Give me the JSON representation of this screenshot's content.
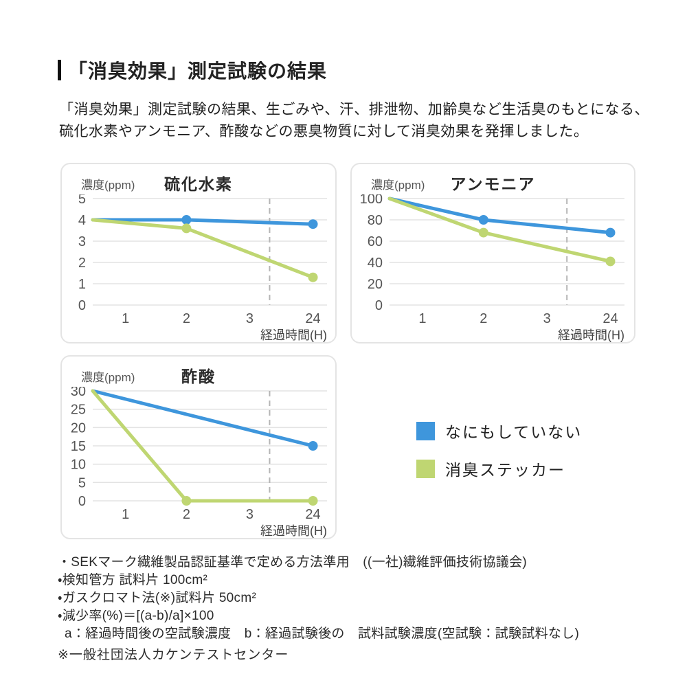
{
  "header": {
    "title": "「消臭効果」測定試験の結果"
  },
  "intro": {
    "line1": "「消臭効果」測定試験の結果、生ごみや、汗、排泄物、加齢臭など生活臭のもとになる、",
    "line2": "硫化水素やアンモニア、酢酸などの悪臭物質に対して消臭効果を発揮しました。"
  },
  "colors": {
    "blue": "#3e96dc",
    "green": "#bfd672",
    "grid": "#e3e3e3",
    "dashed": "#b5b5b5",
    "tick_text": "#555555",
    "xlabel_text": "#444444"
  },
  "chart_data": [
    {
      "type": "line",
      "title": "硫化水素",
      "ylabel": "濃度(ppm)",
      "xlabel": "経過時間(H)",
      "ylim": [
        0,
        5
      ],
      "y_ticks": [
        0,
        1,
        2,
        3,
        4,
        5
      ],
      "x_ticks": [
        {
          "label": "1",
          "f": 0.14
        },
        {
          "label": "2",
          "f": 0.4
        },
        {
          "label": "3",
          "f": 0.67
        },
        {
          "label": "24",
          "f": 0.94
        }
      ],
      "dashed_x_fraction": 0.755,
      "grid": true,
      "series": [
        {
          "name": "なにもしていない",
          "color_key": "blue",
          "points": [
            {
              "x": 0,
              "f": 0,
              "y": 4
            },
            {
              "x": 2,
              "f": 0.4,
              "y": 4,
              "dot": true
            },
            {
              "x": 24,
              "f": 0.94,
              "y": 3.8,
              "dot": true
            }
          ]
        },
        {
          "name": "消臭ステッカー",
          "color_key": "green",
          "points": [
            {
              "x": 0,
              "f": 0,
              "y": 4
            },
            {
              "x": 2,
              "f": 0.4,
              "y": 3.6,
              "dot": true
            },
            {
              "x": 24,
              "f": 0.94,
              "y": 1.3,
              "dot": true
            }
          ]
        }
      ]
    },
    {
      "type": "line",
      "title": "アンモニア",
      "ylabel": "濃度(ppm)",
      "xlabel": "経過時間(H)",
      "ylim": [
        0,
        100
      ],
      "y_ticks": [
        0,
        20,
        40,
        60,
        80,
        100
      ],
      "x_ticks": [
        {
          "label": "1",
          "f": 0.14
        },
        {
          "label": "2",
          "f": 0.4
        },
        {
          "label": "3",
          "f": 0.67
        },
        {
          "label": "24",
          "f": 0.94
        }
      ],
      "dashed_x_fraction": 0.755,
      "grid": true,
      "series": [
        {
          "name": "なにもしていない",
          "color_key": "blue",
          "points": [
            {
              "x": 0,
              "f": 0,
              "y": 100
            },
            {
              "x": 2,
              "f": 0.4,
              "y": 80,
              "dot": true
            },
            {
              "x": 24,
              "f": 0.94,
              "y": 68,
              "dot": true
            }
          ]
        },
        {
          "name": "消臭ステッカー",
          "color_key": "green",
          "points": [
            {
              "x": 0,
              "f": 0,
              "y": 100
            },
            {
              "x": 2,
              "f": 0.4,
              "y": 68,
              "dot": true
            },
            {
              "x": 24,
              "f": 0.94,
              "y": 41,
              "dot": true
            }
          ]
        }
      ]
    },
    {
      "type": "line",
      "title": "酢酸",
      "ylabel": "濃度(ppm)",
      "xlabel": "経過時間(H)",
      "ylim": [
        0,
        30
      ],
      "y_ticks": [
        0,
        5,
        10,
        15,
        20,
        25,
        30
      ],
      "x_ticks": [
        {
          "label": "1",
          "f": 0.14
        },
        {
          "label": "2",
          "f": 0.4
        },
        {
          "label": "3",
          "f": 0.67
        },
        {
          "label": "24",
          "f": 0.94
        }
      ],
      "dashed_x_fraction": 0.755,
      "grid": true,
      "series": [
        {
          "name": "なにもしていない",
          "color_key": "blue",
          "points": [
            {
              "x": 0,
              "f": 0,
              "y": 30
            },
            {
              "x": 24,
              "f": 0.94,
              "y": 15,
              "dot": true
            }
          ]
        },
        {
          "name": "消臭ステッカー",
          "color_key": "green",
          "points": [
            {
              "x": 0,
              "f": 0,
              "y": 30
            },
            {
              "x": 2,
              "f": 0.4,
              "y": 0,
              "dot": true
            },
            {
              "x": 24,
              "f": 0.94,
              "y": 0,
              "dot": true
            }
          ]
        }
      ]
    }
  ],
  "legend": {
    "items": [
      {
        "label": "なにもしていない",
        "color_key": "blue"
      },
      {
        "label": "消臭ステッカー",
        "color_key": "green"
      }
    ]
  },
  "notes": {
    "lines": [
      "・SEKマーク繊維製品認証基準で定める方法準用　((一社)繊維評価技術協議会)",
      "・検知管方 試料片 100cm²",
      "・ガスクロマト法(※)試料片 50cm²",
      "・減少率(%)＝[(a-b)/a]×100",
      "a：経過時間後の空試験濃度　b：経過試験後の　試料試験濃度(空試験：試験試料なし)"
    ],
    "asterisk": "※一般社団法人カケンテストセンター"
  }
}
